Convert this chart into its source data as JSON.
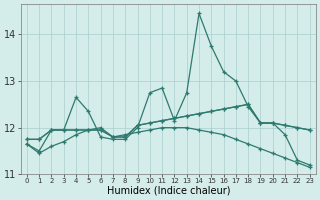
{
  "xlabel": "Humidex (Indice chaleur)",
  "background_color": "#d4ecea",
  "grid_color": "#aacfcc",
  "line_color": "#2d7a6e",
  "xlim": [
    -0.5,
    23.5
  ],
  "ylim": [
    11.0,
    14.65
  ],
  "yticks": [
    11,
    12,
    13,
    14
  ],
  "xticks": [
    0,
    1,
    2,
    3,
    4,
    5,
    6,
    7,
    8,
    9,
    10,
    11,
    12,
    13,
    14,
    15,
    16,
    17,
    18,
    19,
    20,
    21,
    22,
    23
  ],
  "line1": [
    11.75,
    11.75,
    11.95,
    11.95,
    12.65,
    12.35,
    11.8,
    11.75,
    11.75,
    12.0,
    12.75,
    12.85,
    12.15,
    12.75,
    14.45,
    13.75,
    13.2,
    13.0,
    12.45,
    12.1,
    12.1,
    11.85,
    11.3,
    11.2
  ],
  "line2": [
    11.75,
    11.75,
    11.95,
    11.95,
    11.95,
    11.95,
    11.95,
    11.8,
    11.8,
    12.05,
    12.1,
    12.15,
    12.2,
    12.25,
    12.3,
    12.35,
    12.4,
    12.45,
    12.5,
    12.1,
    12.1,
    12.05,
    12.0,
    11.95
  ],
  "line3": [
    11.65,
    11.5,
    11.95,
    11.95,
    11.95,
    11.95,
    11.95,
    11.8,
    11.8,
    12.05,
    12.1,
    12.15,
    12.2,
    12.25,
    12.3,
    12.35,
    12.4,
    12.45,
    12.5,
    12.1,
    12.1,
    12.05,
    12.0,
    11.95
  ],
  "line4": [
    11.65,
    11.45,
    11.6,
    11.7,
    11.85,
    11.95,
    12.0,
    11.8,
    11.85,
    11.9,
    11.95,
    12.0,
    12.0,
    12.0,
    11.95,
    11.9,
    11.85,
    11.75,
    11.65,
    11.55,
    11.45,
    11.35,
    11.25,
    11.15
  ]
}
